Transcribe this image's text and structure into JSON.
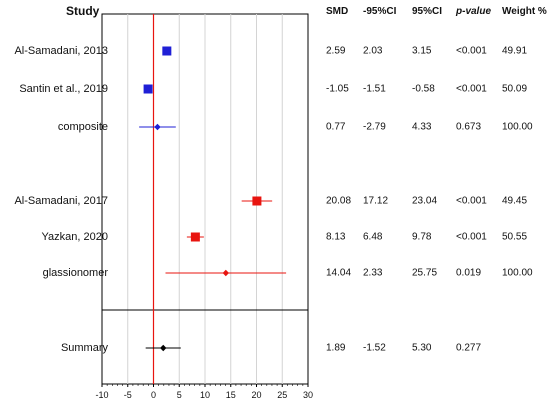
{
  "headers": {
    "study": "Study",
    "smd": "SMD",
    "lower": "-95%CI",
    "upper": "95%CI",
    "p": "p-value",
    "weight": "Weight %"
  },
  "chart_data": {
    "type": "forest",
    "xlim": [
      -10,
      30
    ],
    "x_ticks": [
      -10,
      -5,
      0,
      5,
      10,
      15,
      20,
      25,
      30
    ],
    "reference_line": 0,
    "vertical_grid": true,
    "rows": [
      {
        "label": "Al-Samadani, 2013",
        "smd": 2.59,
        "lower": 2.03,
        "upper": 3.15,
        "smd_text": "2.59",
        "lower_text": "2.03",
        "upper_text": "3.15",
        "p": "<0.001",
        "weight": "49.91",
        "kind": "study",
        "color": "#1f1fd6"
      },
      {
        "label": "Santin et al., 2019",
        "smd": -1.05,
        "lower": -1.51,
        "upper": -0.58,
        "smd_text": "-1.05",
        "lower_text": "-1.51",
        "upper_text": "-0.58",
        "p": "<0.001",
        "weight": "50.09",
        "kind": "study",
        "color": "#1f1fd6"
      },
      {
        "label": "composite",
        "smd": 0.77,
        "lower": -2.79,
        "upper": 4.33,
        "smd_text": "0.77",
        "lower_text": "-2.79",
        "upper_text": "4.33",
        "p": "0.673",
        "weight": "100.00",
        "kind": "pooled",
        "color": "#1f1fd6"
      },
      {
        "label": "Al-Samadani, 2017",
        "smd": 20.08,
        "lower": 17.12,
        "upper": 23.04,
        "smd_text": "20.08",
        "lower_text": "17.12",
        "upper_text": "23.04",
        "p": "<0.001",
        "weight": "49.45",
        "kind": "study",
        "color": "#e8140f"
      },
      {
        "label": "Yazkan, 2020",
        "smd": 8.13,
        "lower": 6.48,
        "upper": 9.78,
        "smd_text": "8.13",
        "lower_text": "6.48",
        "upper_text": "9.78",
        "p": "<0.001",
        "weight": "50.55",
        "kind": "study",
        "color": "#e8140f"
      },
      {
        "label": "glassionomer",
        "smd": 14.04,
        "lower": 2.33,
        "upper": 25.75,
        "smd_text": "14.04",
        "lower_text": "2.33",
        "upper_text": "25.75",
        "p": "0.019",
        "weight": "100.00",
        "kind": "pooled",
        "color": "#e8140f"
      },
      {
        "label": "Summary",
        "smd": 1.89,
        "lower": -1.52,
        "upper": 5.3,
        "smd_text": "1.89",
        "lower_text": "-1.52",
        "upper_text": "5.30",
        "p": "0.277",
        "weight": "",
        "kind": "summary",
        "color": "#000000"
      }
    ]
  }
}
